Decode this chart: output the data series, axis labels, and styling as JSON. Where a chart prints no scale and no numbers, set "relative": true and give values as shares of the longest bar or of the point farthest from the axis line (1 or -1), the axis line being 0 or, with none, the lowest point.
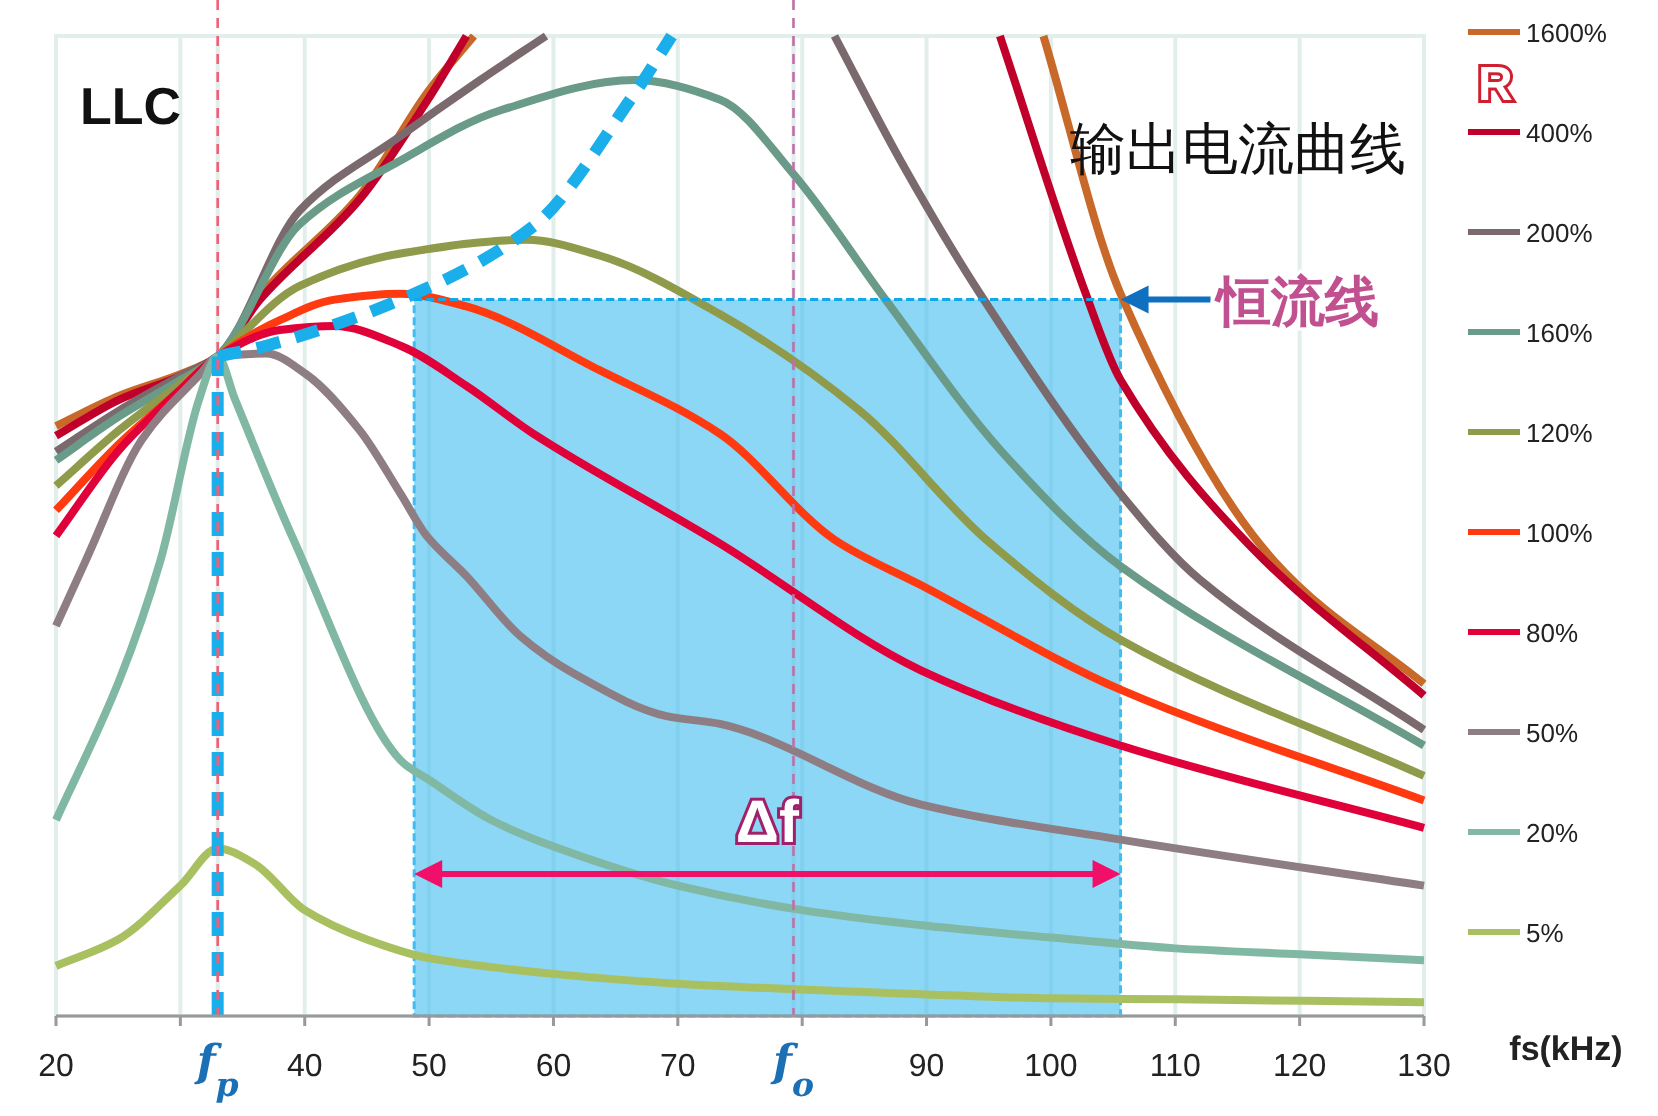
{
  "chart_data": {
    "type": "line",
    "title": "LLC",
    "xlabel": "fs(kHz)",
    "legend_title": "R",
    "relative": true,
    "legend": "right",
    "grid": "x",
    "line_style": "solid",
    "xlim": [
      20,
      130
    ],
    "xticks": [
      20,
      {
        "value": 30,
        "label": null
      },
      {
        "value": 33,
        "label": "f$_{p}$"
      },
      40,
      50,
      60,
      70,
      {
        "value": 79.3,
        "label": "f$_{o}$"
      },
      {
        "value": 80,
        "label": null
      },
      90,
      100,
      110,
      120,
      130
    ],
    "annotations": [
      "输出电流曲线",
      "Δf"
    ],
    "ref_lines": [
      {
        "axis": "x",
        "value": 33,
        "label": null,
        "color": "#f0607a",
        "line_style": "dashed"
      },
      {
        "axis": "x",
        "value": 79.3,
        "label": null,
        "color": "#c070a8",
        "line_style": "dashed"
      },
      {
        "axis": "y",
        "value": 0.731,
        "label": "恒流线",
        "color": "#10a8e8",
        "line_style": "dashed"
      }
    ],
    "bands": [
      {
        "axis": "x",
        "from": 48.8,
        "to": 105.6,
        "label": null,
        "color": "#40bdf0"
      }
    ],
    "series": [
      {
        "name": "1600%",
        "color": "#c8692a",
        "x": [
          20,
          25.1,
          30,
          33,
          36.4,
          44.4,
          49.9,
          53.6,
          99.4,
          105.6,
          117.9,
          130
        ],
        "values": [
          0.602,
          0.633,
          0.655,
          0.673,
          0.735,
          0.837,
          0.943,
          1.0,
          1.0,
          0.737,
          0.465,
          0.339
        ]
      },
      {
        "name": "400%",
        "color": "#c0002a",
        "x": [
          20,
          25.1,
          30,
          33,
          36.4,
          44.4,
          49.9,
          53,
          95.9,
          102.8,
          105.6,
          116.3,
          130
        ],
        "values": [
          0.592,
          0.629,
          0.653,
          0.673,
          0.731,
          0.833,
          0.935,
          1.0,
          1.0,
          0.737,
          0.649,
          0.476,
          0.327
        ]
      },
      {
        "name": "200%",
        "color": "#7a6a6e",
        "x": [
          20,
          25.1,
          30,
          33,
          39.6,
          47.7,
          54.1,
          59.4,
          82.6,
          87.9,
          94.3,
          105.6,
          112,
          130
        ],
        "values": [
          0.576,
          0.618,
          0.653,
          0.673,
          0.822,
          0.898,
          0.955,
          1.0,
          1.0,
          0.873,
          0.737,
          0.533,
          0.445,
          0.292
        ]
      },
      {
        "name": "160%",
        "color": "#6a9a88",
        "x": [
          20,
          25.1,
          30,
          33,
          39.6,
          47.7,
          55.7,
          66.5,
          73.4,
          79.3,
          86.7,
          95.9,
          105.6,
          130
        ],
        "values": [
          0.567,
          0.612,
          0.649,
          0.673,
          0.808,
          0.873,
          0.924,
          0.955,
          0.935,
          0.859,
          0.731,
          0.578,
          0.459,
          0.276
        ]
      },
      {
        "name": "120%",
        "color": "#8f9a4a",
        "x": [
          20,
          25.1,
          30,
          33,
          39.6,
          47.7,
          57.8,
          63.7,
          73.4,
          84.6,
          94.8,
          105.6,
          130
        ],
        "values": [
          0.541,
          0.598,
          0.645,
          0.673,
          0.745,
          0.778,
          0.792,
          0.776,
          0.716,
          0.618,
          0.486,
          0.384,
          0.245
        ]
      },
      {
        "name": "100%",
        "color": "#ff3a10",
        "x": [
          20,
          25.1,
          30,
          33,
          38,
          42.4,
          47.7,
          53,
          63.7,
          73.4,
          82.6,
          89.5,
          105.6,
          130
        ],
        "values": [
          0.516,
          0.584,
          0.639,
          0.673,
          0.71,
          0.731,
          0.737,
          0.724,
          0.659,
          0.594,
          0.486,
          0.44,
          0.333,
          0.22
        ]
      },
      {
        "name": "80%",
        "color": "#e0003a",
        "x": [
          20,
          25.1,
          30,
          33,
          38,
          42.4,
          47.7,
          53,
          58.4,
          73.4,
          89.5,
          105.6,
          130
        ],
        "values": [
          0.49,
          0.578,
          0.639,
          0.673,
          0.7,
          0.704,
          0.684,
          0.643,
          0.594,
          0.482,
          0.353,
          0.276,
          0.192
        ]
      },
      {
        "name": "50%",
        "color": "#8e7e84",
        "x": [
          20,
          22.4,
          26.9,
          31.6,
          33,
          36.9,
          40.1,
          44.4,
          47.7,
          49.8,
          53,
          57.3,
          61.7,
          69.1,
          73.4,
          89.5,
          105.6,
          130
        ],
        "values": [
          0.398,
          0.465,
          0.588,
          0.655,
          0.673,
          0.676,
          0.655,
          0.598,
          0.533,
          0.49,
          0.449,
          0.388,
          0.349,
          0.306,
          0.298,
          0.216,
          0.18,
          0.133
        ]
      },
      {
        "name": "20%",
        "color": "#80b8a4",
        "x": [
          20,
          25.1,
          28.4,
          31.5,
          33,
          34.4,
          39.1,
          47.7,
          50,
          55,
          60,
          70,
          80,
          90,
          100,
          110,
          120,
          130
        ],
        "values": [
          0.2,
          0.343,
          0.465,
          0.629,
          0.673,
          0.629,
          0.486,
          0.261,
          0.241,
          0.2,
          0.173,
          0.133,
          0.108,
          0.092,
          0.08,
          0.069,
          0.063,
          0.057
        ]
      },
      {
        "name": "5%",
        "color": "#a8c060",
        "x": [
          20,
          25,
          30,
          33,
          36,
          40,
          45,
          50,
          60,
          70,
          80,
          90,
          100,
          110,
          130
        ],
        "values": [
          0.051,
          0.078,
          0.133,
          0.171,
          0.155,
          0.108,
          0.078,
          0.059,
          0.043,
          0.033,
          0.027,
          0.022,
          0.018,
          0.017,
          0.014
        ]
      },
      {
        "color": "#1aaeea",
        "line_style": "dashed",
        "x": [
          33,
          36.9,
          47.7,
          58.4,
          66.5,
          69.5
        ],
        "values": [
          0.673,
          0.684,
          0.731,
          0.806,
          0.941,
          1.0
        ]
      },
      {
        "color": "#1aaeea",
        "line_style": "dashed",
        "x": [
          33,
          33
        ],
        "values": [
          0,
          0.673
        ]
      }
    ]
  }
}
